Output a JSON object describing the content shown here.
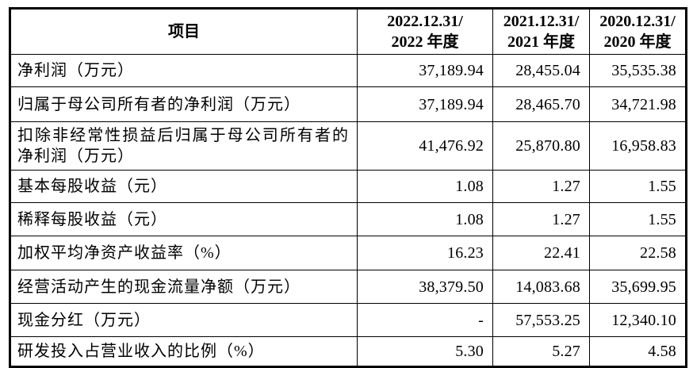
{
  "table": {
    "header": {
      "item_label": "项目",
      "periods": [
        {
          "line1": "2022.12.31/",
          "line2": "2022 年度"
        },
        {
          "line1": "2021.12.31/",
          "line2": "2021 年度"
        },
        {
          "line1": "2020.12.31/",
          "line2": "2020 年度"
        }
      ]
    },
    "rows": [
      {
        "label": "净利润（万元）",
        "values": [
          "37,189.94",
          "28,455.04",
          "35,535.38"
        ]
      },
      {
        "label": "归属于母公司所有者的净利润（万元）",
        "values": [
          "37,189.94",
          "28,465.70",
          "34,721.98"
        ]
      },
      {
        "label": "扣除非经常性损益后归属于母公司所有者的净利润（万元）",
        "values": [
          "41,476.92",
          "25,870.80",
          "16,958.83"
        ]
      },
      {
        "label": "基本每股收益（元）",
        "values": [
          "1.08",
          "1.27",
          "1.55"
        ]
      },
      {
        "label": "稀释每股收益（元）",
        "values": [
          "1.08",
          "1.27",
          "1.55"
        ]
      },
      {
        "label": "加权平均净资产收益率（%）",
        "values": [
          "16.23",
          "22.41",
          "22.58"
        ]
      },
      {
        "label": "经营活动产生的现金流量净额（万元）",
        "values": [
          "38,379.50",
          "14,083.68",
          "35,699.95"
        ]
      },
      {
        "label": "现金分红（万元）",
        "values": [
          "-",
          "57,553.25",
          "12,340.10"
        ]
      },
      {
        "label": "研发投入占营业收入的比例（%）",
        "values": [
          "5.30",
          "5.27",
          "4.58"
        ]
      }
    ]
  },
  "colors": {
    "border": "#000000",
    "text": "#000000",
    "background": "#ffffff"
  }
}
